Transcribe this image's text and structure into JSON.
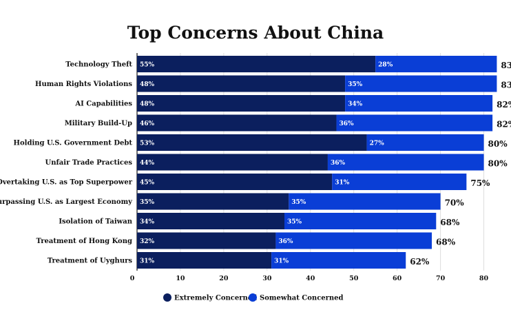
{
  "chart_data": {
    "type": "bar",
    "orientation": "horizontal",
    "stacked": true,
    "title": "Top Concerns About China",
    "xlabel": "",
    "ylabel": "",
    "xlim": [
      0,
      85
    ],
    "x_ticks": [
      0,
      10,
      20,
      30,
      40,
      50,
      60,
      70,
      80
    ],
    "grid": true,
    "legend_position": "bottom",
    "categories": [
      "Technology Theft",
      "Human Rights Violations",
      "AI Capabilities",
      "Military Build-Up",
      "Holding U.S. Government Debt",
      "Unfair Trade Practices",
      "Overtaking U.S. as Top Superpower",
      "Surpassing U.S. as Largest Economy",
      "Isolation of Taiwan",
      "Treatment of Hong Kong",
      "Treatment of Uyghurs"
    ],
    "series": [
      {
        "name": "Extremely Concerned",
        "color": "#0b1f5e",
        "values": [
          55,
          48,
          48,
          46,
          53,
          44,
          45,
          35,
          34,
          32,
          31
        ]
      },
      {
        "name": "Somewhat Concerned",
        "color": "#0a3ed6",
        "values": [
          28,
          35,
          34,
          36,
          27,
          36,
          31,
          35,
          35,
          36,
          31
        ]
      }
    ],
    "totals": [
      83,
      83,
      82,
      82,
      80,
      80,
      75,
      70,
      68,
      68,
      62
    ],
    "value_suffix": "%"
  }
}
